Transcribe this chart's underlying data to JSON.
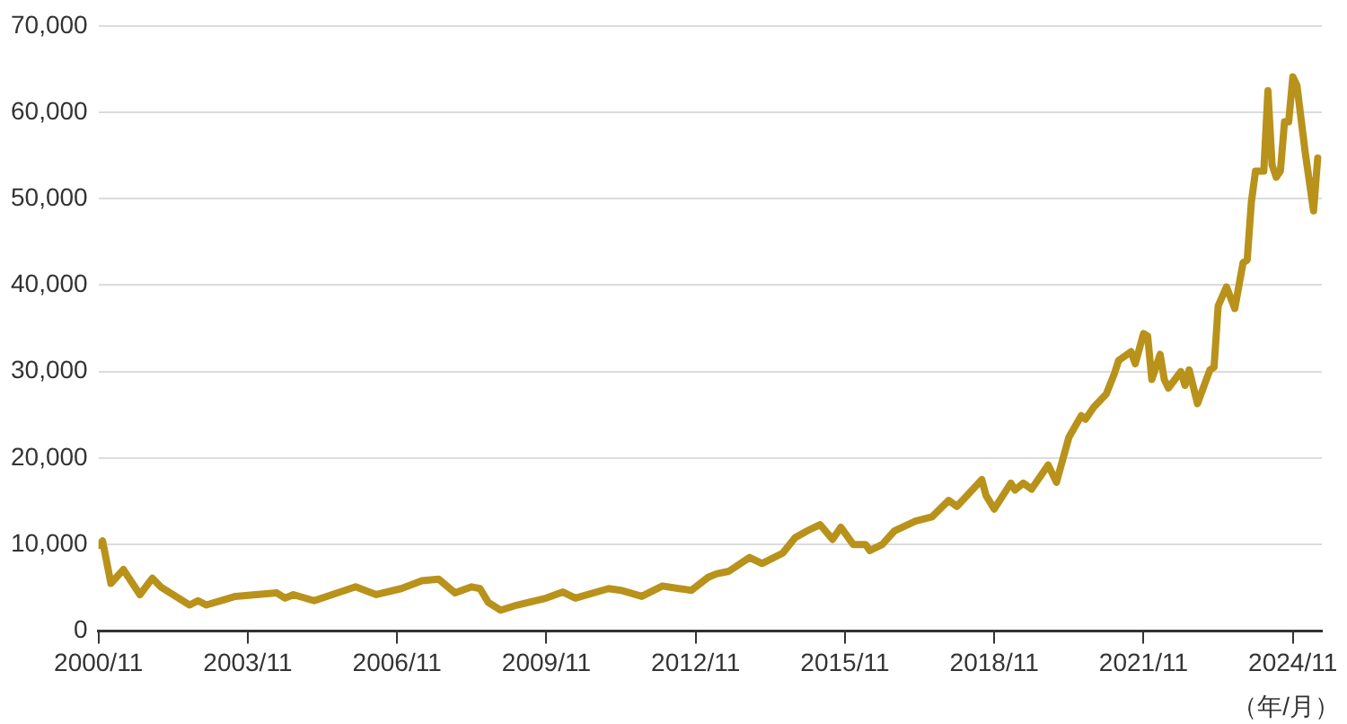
{
  "chart_data": {
    "type": "line",
    "xlabel": "（年/月）",
    "x": [
      "2000-11",
      "2000-12",
      "2001-02",
      "2001-05",
      "2001-09",
      "2001-12",
      "2002-02",
      "2002-09",
      "2002-11",
      "2003-01",
      "2003-08",
      "2004-06",
      "2004-08",
      "2004-10",
      "2005-03",
      "2006-01",
      "2006-06",
      "2006-12",
      "2007-05",
      "2007-09",
      "2008-01",
      "2008-05",
      "2008-07",
      "2008-09",
      "2008-12",
      "2009-04",
      "2009-11",
      "2010-03",
      "2010-06",
      "2011-02",
      "2011-05",
      "2011-10",
      "2012-03",
      "2012-07",
      "2012-10",
      "2013-02",
      "2013-04",
      "2013-07",
      "2013-12",
      "2014-03",
      "2014-08",
      "2014-11",
      "2015-02",
      "2015-05",
      "2015-08",
      "2015-10",
      "2016-01",
      "2016-04",
      "2016-05",
      "2016-08",
      "2016-11",
      "2017-04",
      "2017-08",
      "2017-12",
      "2018-02",
      "2018-08",
      "2018-09",
      "2018-11",
      "2019-03",
      "2019-04",
      "2019-06",
      "2019-08",
      "2019-12",
      "2020-02",
      "2020-05",
      "2020-08",
      "2020-09",
      "2020-11",
      "2021-02",
      "2021-04",
      "2021-05",
      "2021-08",
      "2021-09",
      "2021-11",
      "2021-12",
      "2022-01",
      "2022-03",
      "2022-04",
      "2022-05",
      "2022-08",
      "2022-09",
      "2022-10",
      "2022-12",
      "2023-03",
      "2023-04",
      "2023-05",
      "2023-07",
      "2023-09",
      "2023-11",
      "2023-12",
      "2024-01",
      "2024-02",
      "2024-04",
      "2024-05",
      "2024-06",
      "2024-07",
      "2024-08",
      "2024-09",
      "2024-10",
      "2024-11",
      "2024-12",
      "2025-02",
      "2025-04",
      "2025-05"
    ],
    "series": [
      {
        "color": "#b8921a",
        "values": [
          9900,
          10400,
          5500,
          7100,
          4200,
          6100,
          5100,
          3000,
          3500,
          3000,
          4000,
          4400,
          3800,
          4200,
          3500,
          5100,
          4200,
          4900,
          5800,
          6000,
          4400,
          5100,
          4900,
          3300,
          2400,
          3000,
          3800,
          4500,
          3800,
          4900,
          4700,
          4000,
          5200,
          4900,
          4700,
          6200,
          6600,
          6900,
          8500,
          7800,
          9000,
          10800,
          11600,
          12300,
          10600,
          12000,
          10000,
          10000,
          9300,
          10000,
          11600,
          12700,
          13200,
          15100,
          14400,
          17500,
          15700,
          14100,
          17100,
          16300,
          17100,
          16400,
          19200,
          17200,
          22400,
          24900,
          24500,
          25900,
          27400,
          29800,
          31300,
          32300,
          30900,
          34400,
          34100,
          29100,
          32000,
          29100,
          28100,
          30000,
          28400,
          30200,
          26300,
          30200,
          30500,
          37600,
          39800,
          37300,
          42600,
          42900,
          49600,
          53200,
          53200,
          62500,
          53900,
          52500,
          53200,
          58900,
          58900,
          64100,
          63100,
          55300,
          48600,
          54700
        ]
      }
    ],
    "xlim": [
      "2000-11",
      "2025-06"
    ],
    "xticks": [
      {
        "value": "2000-11",
        "label": "2000/11"
      },
      {
        "value": "2003-11",
        "label": "2003/11"
      },
      {
        "value": "2006-11",
        "label": "2006/11"
      },
      {
        "value": "2009-11",
        "label": "2009/11"
      },
      {
        "value": "2012-11",
        "label": "2012/11"
      },
      {
        "value": "2015-11",
        "label": "2015/11"
      },
      {
        "value": "2018-11",
        "label": "2018/11"
      },
      {
        "value": "2021-11",
        "label": "2021/11"
      },
      {
        "value": "2024-11",
        "label": "2024/11"
      }
    ],
    "ylim": [
      0,
      70000
    ],
    "yticks": [
      0,
      {
        "value": 10000,
        "label": "10,000"
      },
      {
        "value": 20000,
        "label": "20,000"
      },
      {
        "value": 30000,
        "label": "30,000"
      },
      {
        "value": 40000,
        "label": "40,000"
      },
      {
        "value": 50000,
        "label": "50,000"
      },
      {
        "value": 60000,
        "label": "60,000"
      },
      {
        "value": 70000,
        "label": "70,000"
      }
    ],
    "grid": "y",
    "marker": "none",
    "line_style": "solid"
  }
}
